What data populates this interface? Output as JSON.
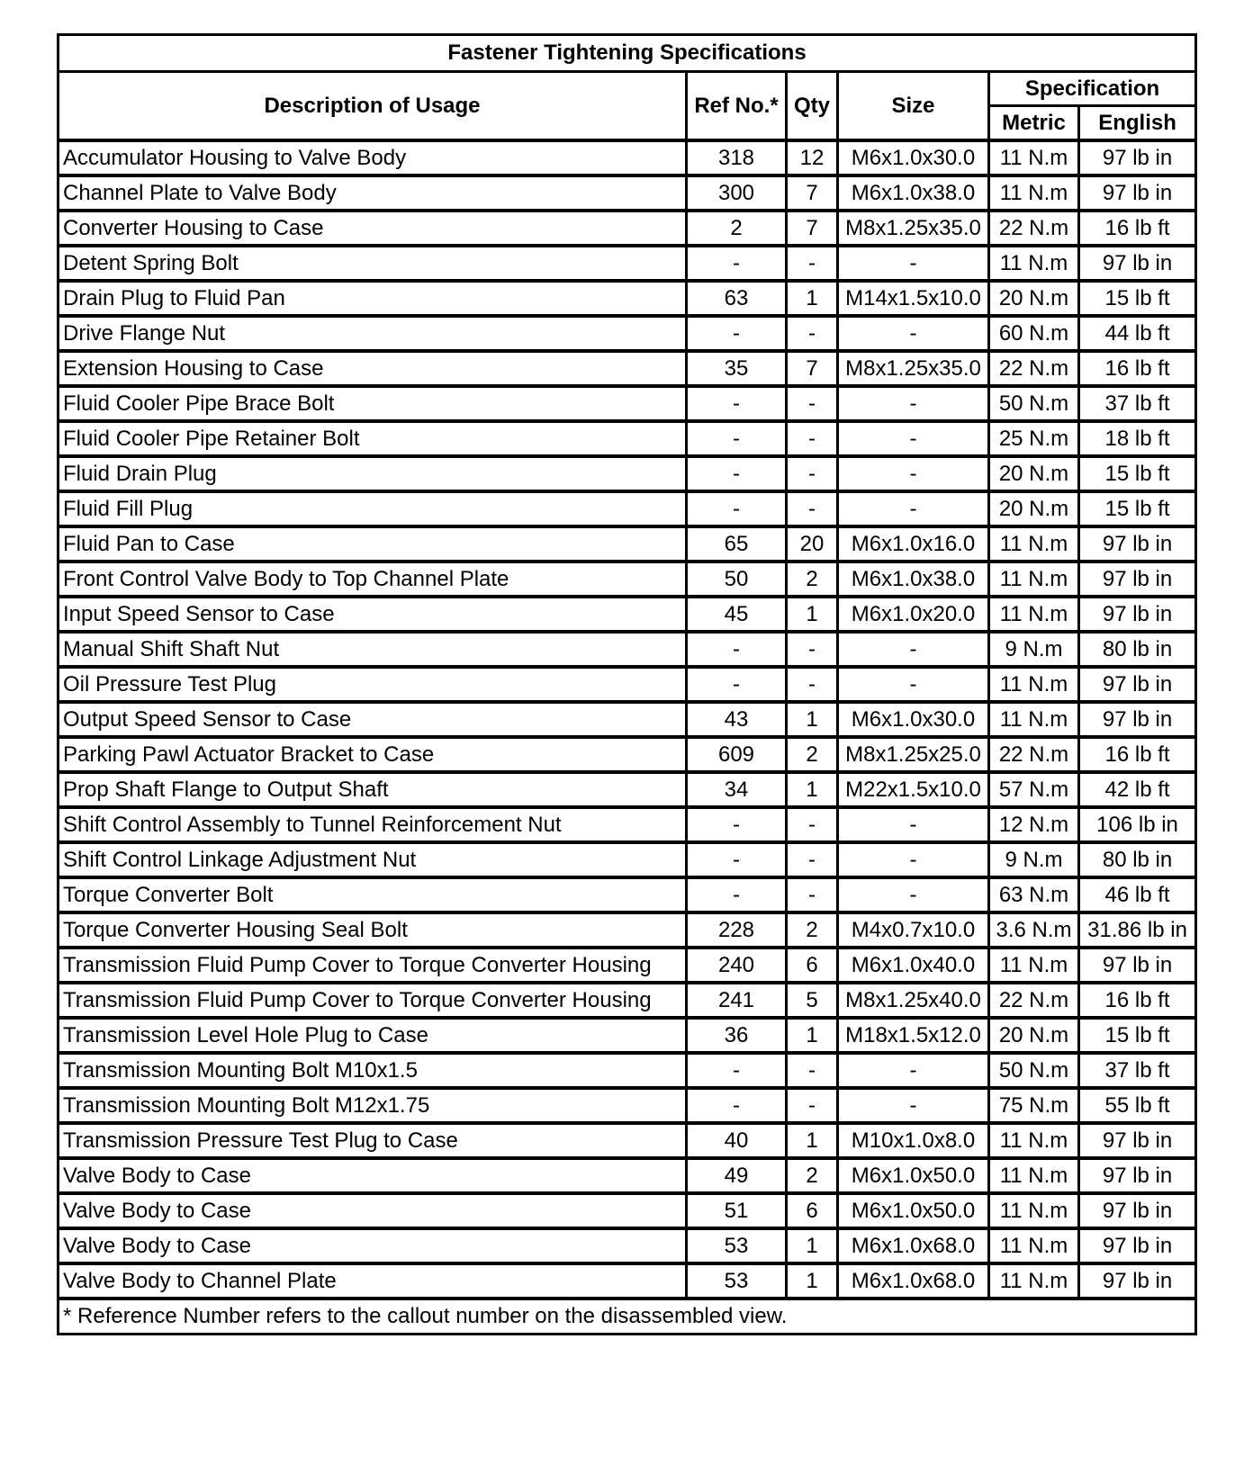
{
  "title": "Fastener Tightening Specifications",
  "headers": {
    "description": "Description of Usage",
    "ref": "Ref No.*",
    "qty": "Qty",
    "size": "Size",
    "specification": "Specification",
    "metric": "Metric",
    "english": "English"
  },
  "rows": [
    [
      "Accumulator Housing to Valve Body",
      "318",
      "12",
      "M6x1.0x30.0",
      "11 N.m",
      "97 lb in"
    ],
    [
      "Channel Plate to Valve Body",
      "300",
      "7",
      "M6x1.0x38.0",
      "11 N.m",
      "97 lb in"
    ],
    [
      "Converter Housing to Case",
      "2",
      "7",
      "M8x1.25x35.0",
      "22 N.m",
      "16 lb ft"
    ],
    [
      "Detent Spring Bolt",
      "-",
      "-",
      "-",
      "11 N.m",
      "97 lb in"
    ],
    [
      "Drain Plug to Fluid Pan",
      "63",
      "1",
      "M14x1.5x10.0",
      "20 N.m",
      "15 lb ft"
    ],
    [
      "Drive Flange Nut",
      "-",
      "-",
      "-",
      "60 N.m",
      "44 lb ft"
    ],
    [
      "Extension Housing to Case",
      "35",
      "7",
      "M8x1.25x35.0",
      "22 N.m",
      "16 lb ft"
    ],
    [
      "Fluid Cooler Pipe Brace Bolt",
      "-",
      "-",
      "-",
      "50 N.m",
      "37 lb ft"
    ],
    [
      "Fluid Cooler Pipe Retainer Bolt",
      "-",
      "-",
      "-",
      "25 N.m",
      "18 lb ft"
    ],
    [
      "Fluid Drain Plug",
      "-",
      "-",
      "-",
      "20 N.m",
      "15 lb ft"
    ],
    [
      "Fluid Fill Plug",
      "-",
      "-",
      "-",
      "20 N.m",
      "15 lb ft"
    ],
    [
      "Fluid Pan to Case",
      "65",
      "20",
      "M6x1.0x16.0",
      "11 N.m",
      "97 lb in"
    ],
    [
      "Front Control Valve Body to Top Channel Plate",
      "50",
      "2",
      "M6x1.0x38.0",
      "11 N.m",
      "97 lb in"
    ],
    [
      "Input Speed Sensor to Case",
      "45",
      "1",
      "M6x1.0x20.0",
      "11 N.m",
      "97 lb in"
    ],
    [
      "Manual Shift Shaft Nut",
      "-",
      "-",
      "-",
      "9 N.m",
      "80 lb in"
    ],
    [
      "Oil Pressure Test Plug",
      "-",
      "-",
      "-",
      "11 N.m",
      "97 lb in"
    ],
    [
      "Output Speed Sensor to Case",
      "43",
      "1",
      "M6x1.0x30.0",
      "11 N.m",
      "97 lb in"
    ],
    [
      "Parking Pawl Actuator Bracket to Case",
      "609",
      "2",
      "M8x1.25x25.0",
      "22 N.m",
      "16 lb ft"
    ],
    [
      "Prop Shaft Flange to Output Shaft",
      "34",
      "1",
      "M22x1.5x10.0",
      "57 N.m",
      "42 lb ft"
    ],
    [
      "Shift Control Assembly to Tunnel Reinforcement Nut",
      "-",
      "-",
      "-",
      "12 N.m",
      "106 lb in"
    ],
    [
      "Shift Control Linkage Adjustment Nut",
      "-",
      "-",
      "-",
      "9 N.m",
      "80 lb in"
    ],
    [
      "Torque Converter Bolt",
      "-",
      "-",
      "-",
      "63 N.m",
      "46 lb ft"
    ],
    [
      "Torque Converter Housing Seal Bolt",
      "228",
      "2",
      "M4x0.7x10.0",
      "3.6 N.m",
      "31.86 lb in"
    ],
    [
      "Transmission Fluid Pump Cover to Torque Converter Housing",
      "240",
      "6",
      "M6x1.0x40.0",
      "11 N.m",
      "97 lb in"
    ],
    [
      "Transmission Fluid Pump Cover to Torque Converter Housing",
      "241",
      "5",
      "M8x1.25x40.0",
      "22 N.m",
      "16 lb ft"
    ],
    [
      "Transmission Level Hole Plug to Case",
      "36",
      "1",
      "M18x1.5x12.0",
      "20 N.m",
      "15 lb ft"
    ],
    [
      "Transmission Mounting Bolt M10x1.5",
      "-",
      "-",
      "-",
      "50 N.m",
      "37 lb ft"
    ],
    [
      "Transmission Mounting Bolt M12x1.75",
      "-",
      "-",
      "-",
      "75 N.m",
      "55 lb ft"
    ],
    [
      "Transmission Pressure Test Plug to Case",
      "40",
      "1",
      "M10x1.0x8.0",
      "11 N.m",
      "97 lb in"
    ],
    [
      "Valve Body to Case",
      "49",
      "2",
      "M6x1.0x50.0",
      "11 N.m",
      "97 lb in"
    ],
    [
      "Valve Body to Case",
      "51",
      "6",
      "M6x1.0x50.0",
      "11 N.m",
      "97 lb in"
    ],
    [
      "Valve Body to Case",
      "53",
      "1",
      "M6x1.0x68.0",
      "11 N.m",
      "97 lb in"
    ],
    [
      "Valve Body to Channel Plate",
      "53",
      "1",
      "M6x1.0x68.0",
      "11 N.m",
      "97 lb in"
    ]
  ],
  "footnote": "* Reference Number refers to the callout number on the disassembled view."
}
